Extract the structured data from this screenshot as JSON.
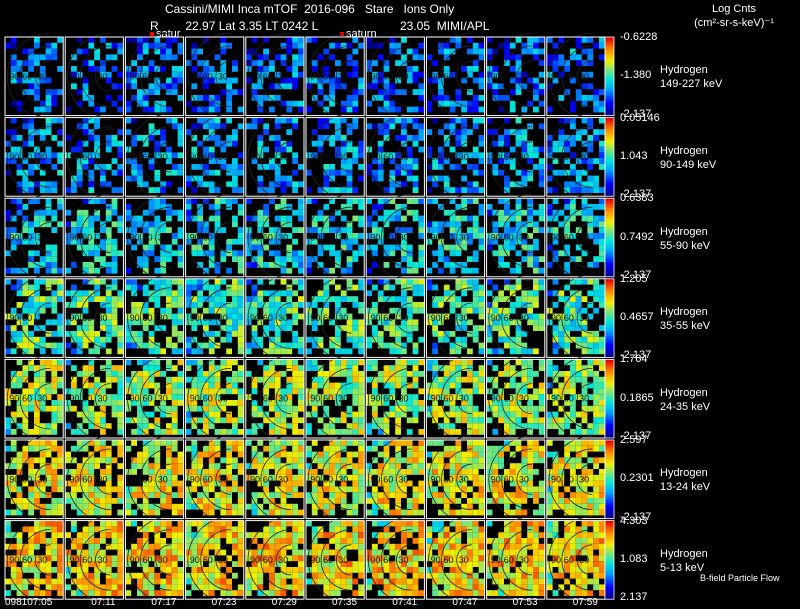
{
  "header": {
    "title": "Cassini/MIMI Inca mTOF  2016-096   Stare   Ions Only",
    "line2_left": "R        22.97 Lat 3.35 LT 0242 L",
    "line2_right": "23.05  MIMI/APL",
    "satur_label_1": "satur",
    "satur_label_2": "saturn"
  },
  "units": {
    "line1": "Log Cnts",
    "line2": "(cm²-sr-s-keV)⁻¹"
  },
  "chart_data": {
    "type": "heatmap",
    "title": "Cassini/MIMI Inca mTOF 2016-096 Stare Ions Only",
    "time_labels": [
      "098107:05",
      "07:11",
      "07:17",
      "07:23",
      "07:29",
      "07:35",
      "07:41",
      "07:47",
      "07:53",
      "07:59"
    ],
    "contour_labels": [
      "30",
      "60",
      "90"
    ],
    "panels": [
      {
        "species": "Hydrogen",
        "energy": "149-227 keV",
        "max": "-0.6228",
        "mid": "-1.380",
        "min": "-2.137",
        "max_value": -0.6228,
        "mid_value": -1.38,
        "min_value": -2.137,
        "mean_level": 0.16
      },
      {
        "species": "Hydrogen",
        "energy": "90-149 keV",
        "max": "0.05146",
        "mid": "1.043",
        "min": "-2.137",
        "max_value": 0.05146,
        "mid_value": 1.043,
        "min_value": -2.137,
        "mean_level": 0.2
      },
      {
        "species": "Hydrogen",
        "energy": "55-90 keV",
        "max": "0.6383",
        "mid": "0.7492",
        "min": "-2.137",
        "max_value": 0.6383,
        "mid_value": 0.7492,
        "min_value": -2.137,
        "mean_level": 0.3
      },
      {
        "species": "Hydrogen",
        "energy": "35-55 keV",
        "max": "1.205",
        "mid": "0.4657",
        "min": "-2.137",
        "max_value": 1.205,
        "mid_value": 0.4657,
        "min_value": -2.137,
        "mean_level": 0.4
      },
      {
        "species": "Hydrogen",
        "energy": "24-35 keV",
        "max": "1.764",
        "mid": "0.1865",
        "min": "-2.137",
        "max_value": 1.764,
        "mid_value": 0.1865,
        "min_value": -2.137,
        "mean_level": 0.5
      },
      {
        "species": "Hydrogen",
        "energy": "13-24 keV",
        "max": "2.597",
        "mid": "0.2301",
        "min": "-2.137",
        "max_value": 2.597,
        "mid_value": 0.2301,
        "min_value": -2.137,
        "mean_level": 0.58
      },
      {
        "species": "Hydrogen",
        "energy": "5-13 keV",
        "max": "4.303",
        "mid": "1.083",
        "min": "2.137",
        "max_value": 4.303,
        "mid_value": 1.083,
        "min_value": 2.137,
        "mean_level": 0.62
      }
    ],
    "footer_note": "B-field Particle Flow"
  }
}
